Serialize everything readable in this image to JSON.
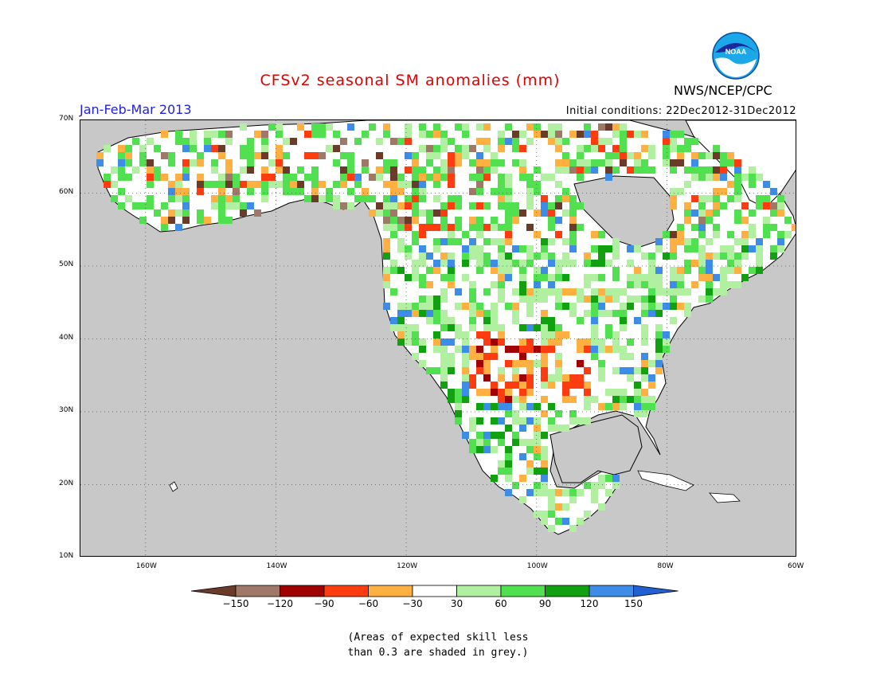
{
  "title": "CFSv2 seasonal SM anomalies (mm)",
  "season": "Jan-Feb-Mar 2013",
  "initial_conditions": "Initial conditions: 22Dec2012-31Dec2012",
  "org": "NWS/NCEP/CPC",
  "logo_text": "NOAA",
  "map": {
    "lat_labels": [
      "70N",
      "60N",
      "50N",
      "40N",
      "30N",
      "20N",
      "10N"
    ],
    "lon_labels": [
      "160W",
      "140W",
      "120W",
      "100W",
      "80W",
      "60W"
    ],
    "lon_range": [
      -170,
      -60
    ],
    "lat_range": [
      10,
      70
    ]
  },
  "colorbar": {
    "labels": [
      "-150",
      "-120",
      "-90",
      "-60",
      "-30",
      "30",
      "60",
      "90",
      "120",
      "150"
    ],
    "colors": [
      "#6b3b2a",
      "#a07868",
      "#a00000",
      "#ff3c10",
      "#ffb040",
      "#ffffff",
      "#b0f0a0",
      "#50e050",
      "#10a010",
      "#3c8ce8",
      "#2060d0"
    ]
  },
  "note_lines": [
    "(Areas of expected skill less",
    "than 0.3 are shaded in grey.)"
  ],
  "colors": {
    "ocean": "#c8c8c8",
    "land": "#ffffff",
    "title": "#e00000",
    "season": "#2222dd"
  }
}
